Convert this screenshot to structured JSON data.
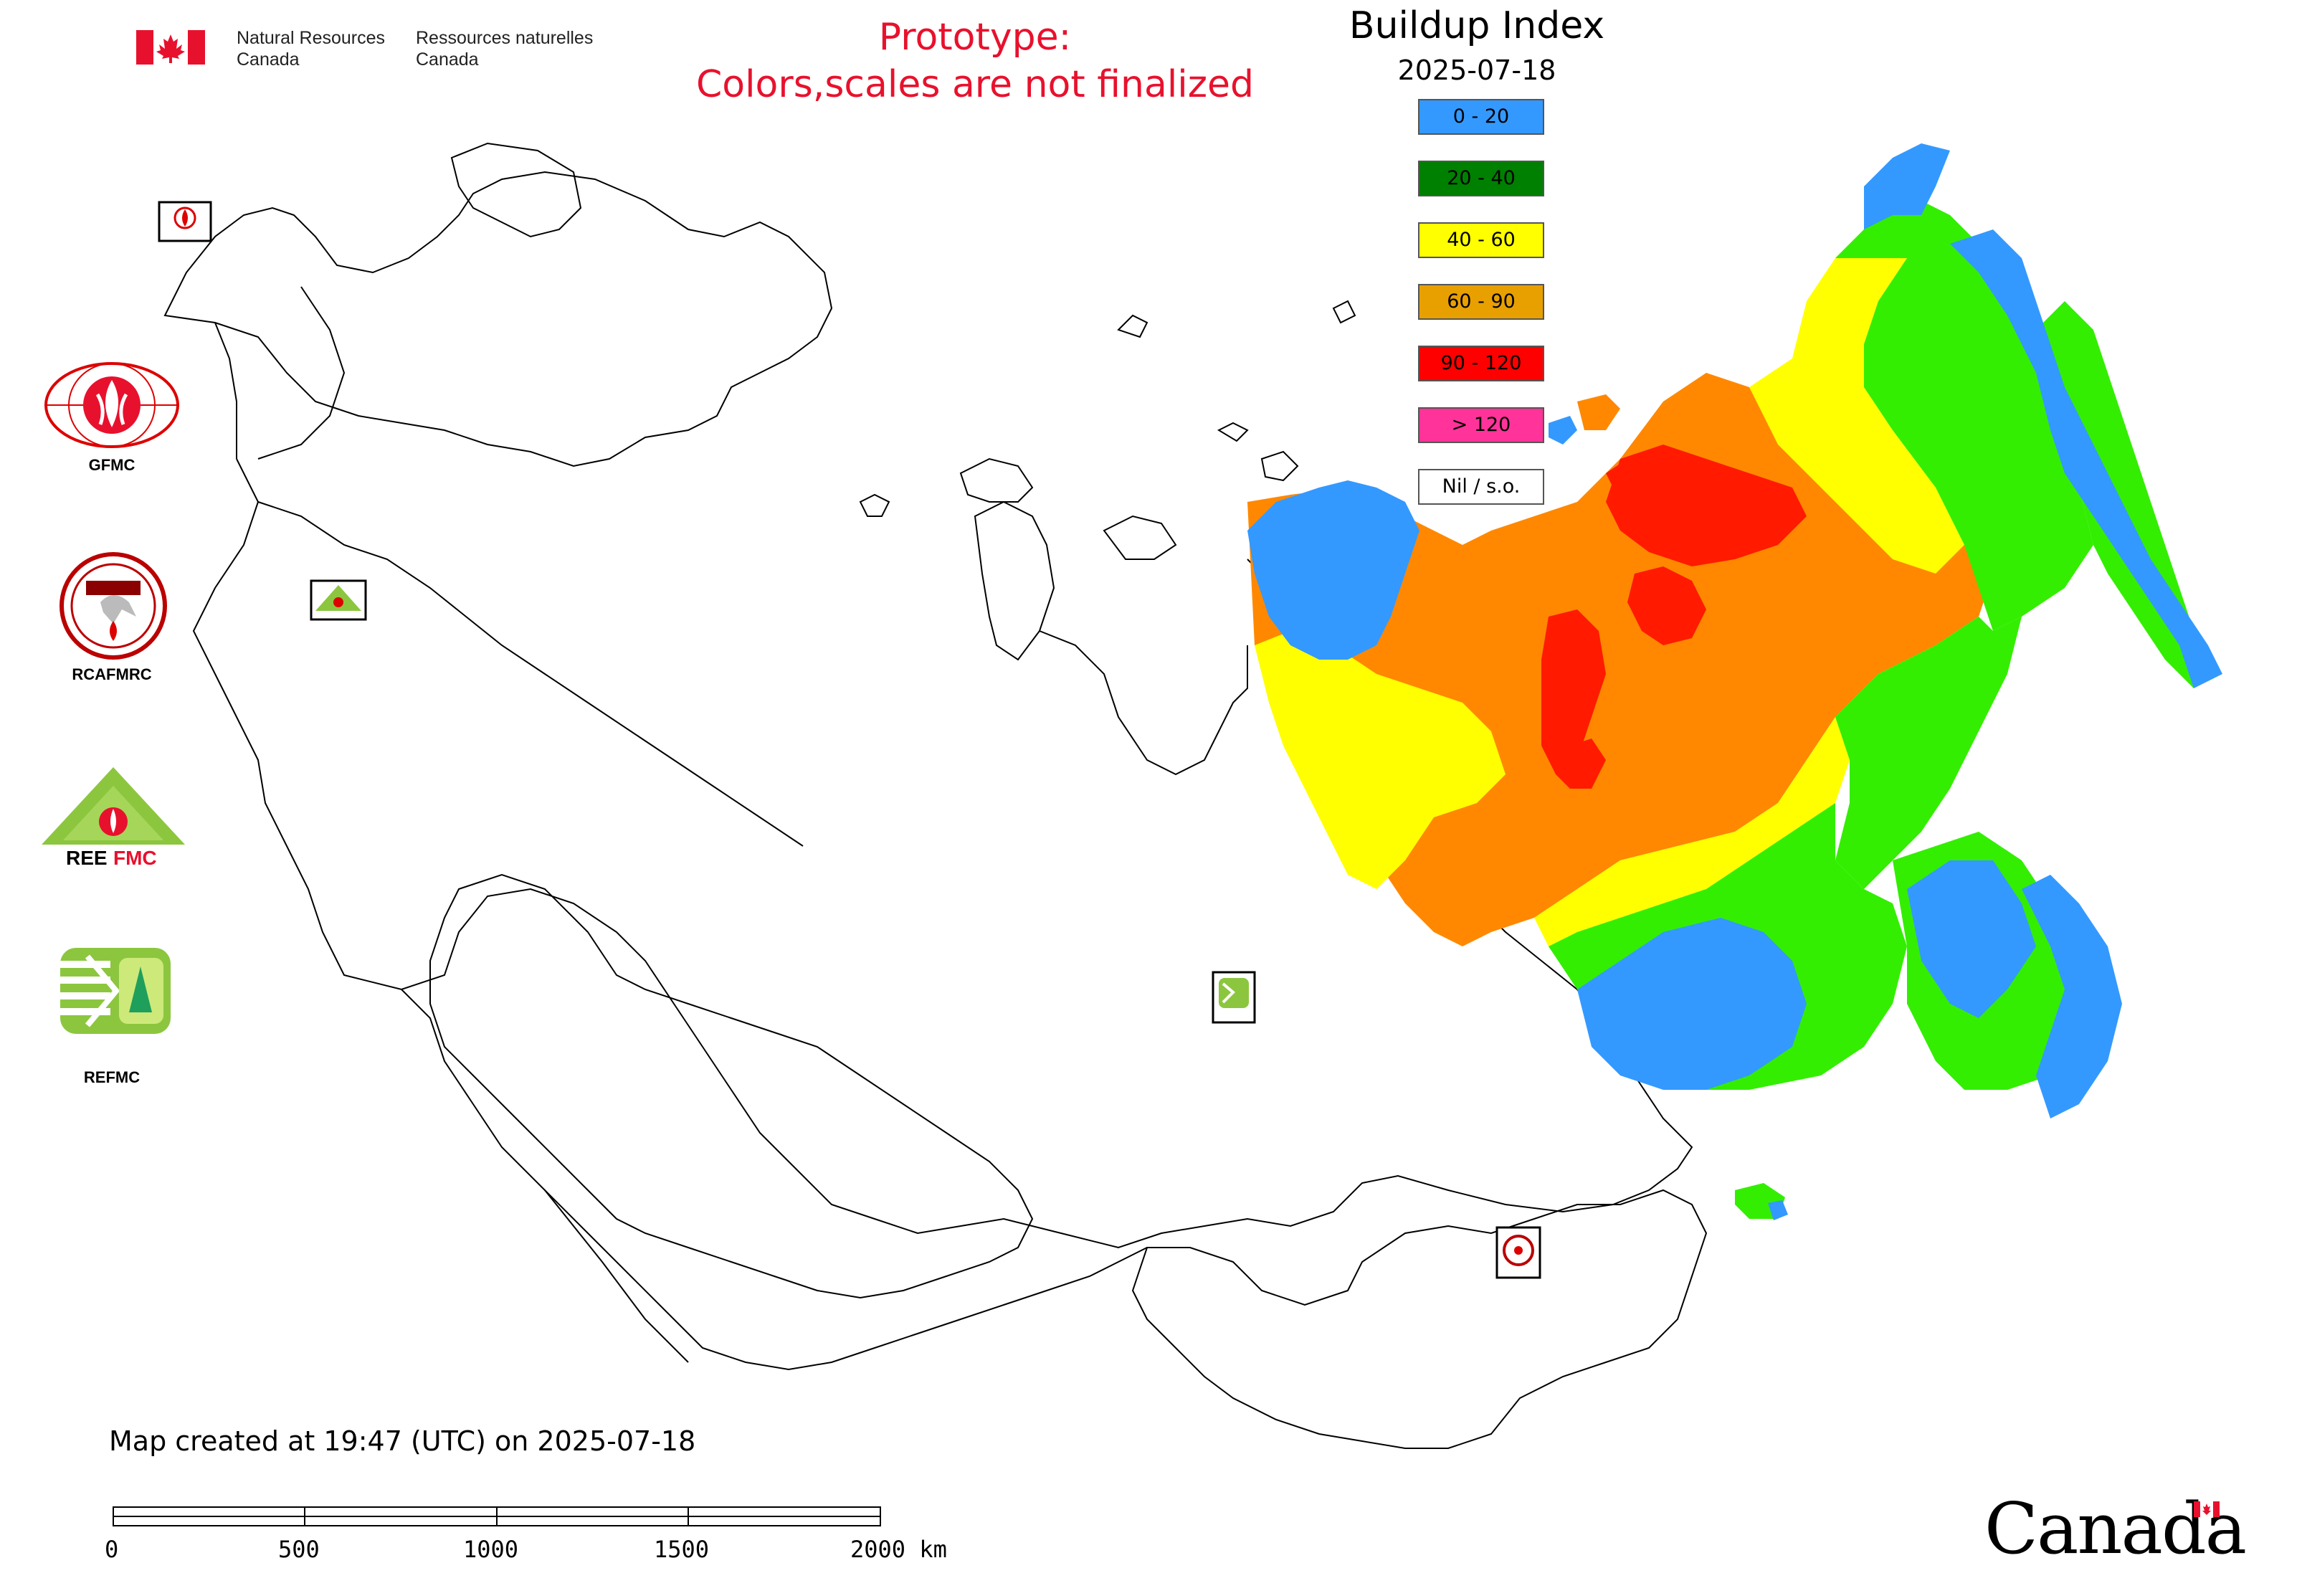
{
  "header": {
    "department_en_line1": "Natural Resources",
    "department_en_line2": "Canada",
    "department_fr_line1": "Ressources naturelles",
    "department_fr_line2": "Canada"
  },
  "notice": {
    "line1": "Prototype:",
    "line2": "Colors,scales are not finalized"
  },
  "legend": {
    "title": "Buildup Index",
    "date": "2025-07-18",
    "items": [
      {
        "label": "0 - 20",
        "color": "#3399ff"
      },
      {
        "label": "20 - 40",
        "color": "#008000"
      },
      {
        "label": "40 - 60",
        "color": "#ffff00"
      },
      {
        "label": "60 - 90",
        "color": "#e8a000"
      },
      {
        "label": "90 - 120",
        "color": "#ff0000"
      },
      {
        "label": "> 120",
        "color": "#ff3399"
      },
      {
        "label": "Nil / s.o.",
        "color": "#ffffff"
      }
    ]
  },
  "map_colors": {
    "blue": "#3399ff",
    "green": "#33ee00",
    "yellow": "#ffff00",
    "orange": "#ff8800",
    "red": "#ff1a00"
  },
  "logos": [
    {
      "label": "GFMC"
    },
    {
      "label": "RCAFMRC"
    },
    {
      "label": "REEFMC"
    },
    {
      "label": "REFMC"
    }
  ],
  "footer": {
    "created": "Map created at 19:47 (UTC) on 2025-07-18",
    "scale_ticks": [
      "0",
      "500",
      "1000",
      "1500",
      "2000 km"
    ],
    "wordmark": "Canada"
  }
}
